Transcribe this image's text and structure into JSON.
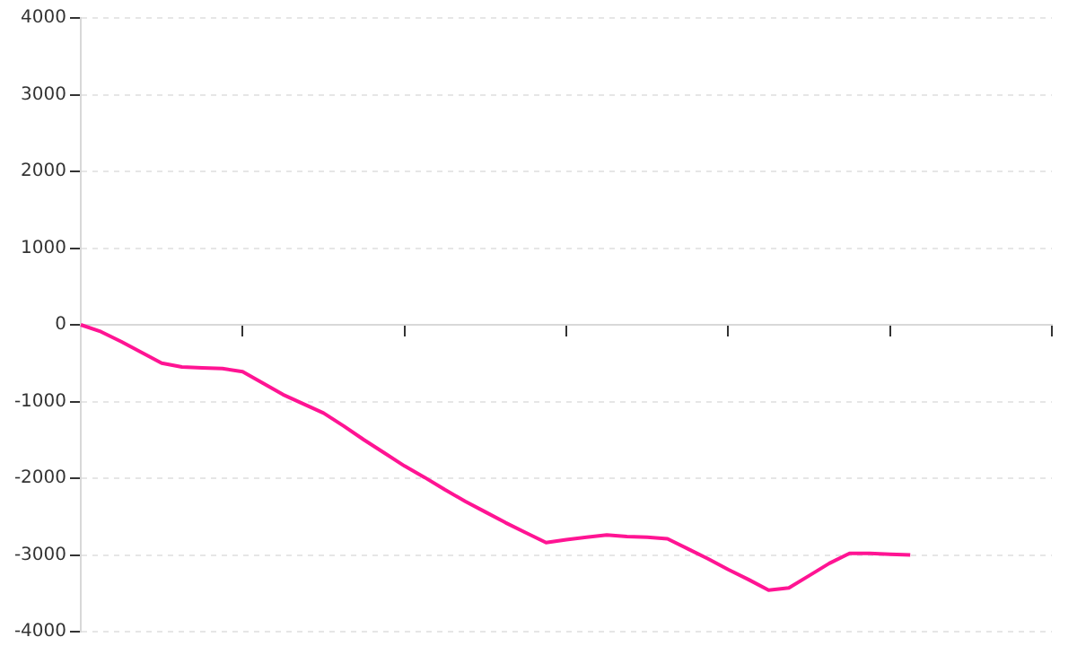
{
  "chart_data": {
    "type": "line",
    "categories": [
      null,
      null,
      null,
      null,
      null,
      null,
      null,
      null,
      null,
      null,
      null,
      null,
      null,
      null,
      null,
      null,
      null,
      null,
      null,
      null,
      null,
      null,
      null,
      null,
      null,
      null,
      null,
      null,
      null,
      null,
      null,
      null,
      null,
      null,
      null,
      null,
      null,
      null,
      null,
      null,
      null,
      null,
      null,
      null,
      null,
      null,
      null,
      null,
      null
    ],
    "series": [
      {
        "color": "#ff1493",
        "values": [
          0,
          -90,
          -220,
          -360,
          -500,
          -550,
          -560,
          -570,
          -610,
          -760,
          -910,
          -1030,
          -1150,
          -1320,
          -1500,
          -1670,
          -1840,
          -1990,
          -2150,
          -2300,
          -2440,
          -2580,
          -2710,
          -2840,
          -2800,
          -2770,
          -2740,
          -2760,
          -2770,
          -2790,
          -2920,
          -3050,
          -3190,
          -3320,
          -3460,
          -3430,
          -3270,
          -3110,
          -2980,
          -2980,
          -2990,
          -3000,
          null,
          null,
          null,
          null,
          null,
          null,
          null
        ]
      }
    ],
    "ylim": [
      -4000,
      4000
    ],
    "yticks": [
      -4000,
      -3000,
      -2000,
      -1000,
      0,
      1000,
      2000,
      3000,
      4000
    ],
    "grid": "y",
    "legend": false,
    "marker": "none",
    "line_style": "solid",
    "tick_labels": "y"
  }
}
